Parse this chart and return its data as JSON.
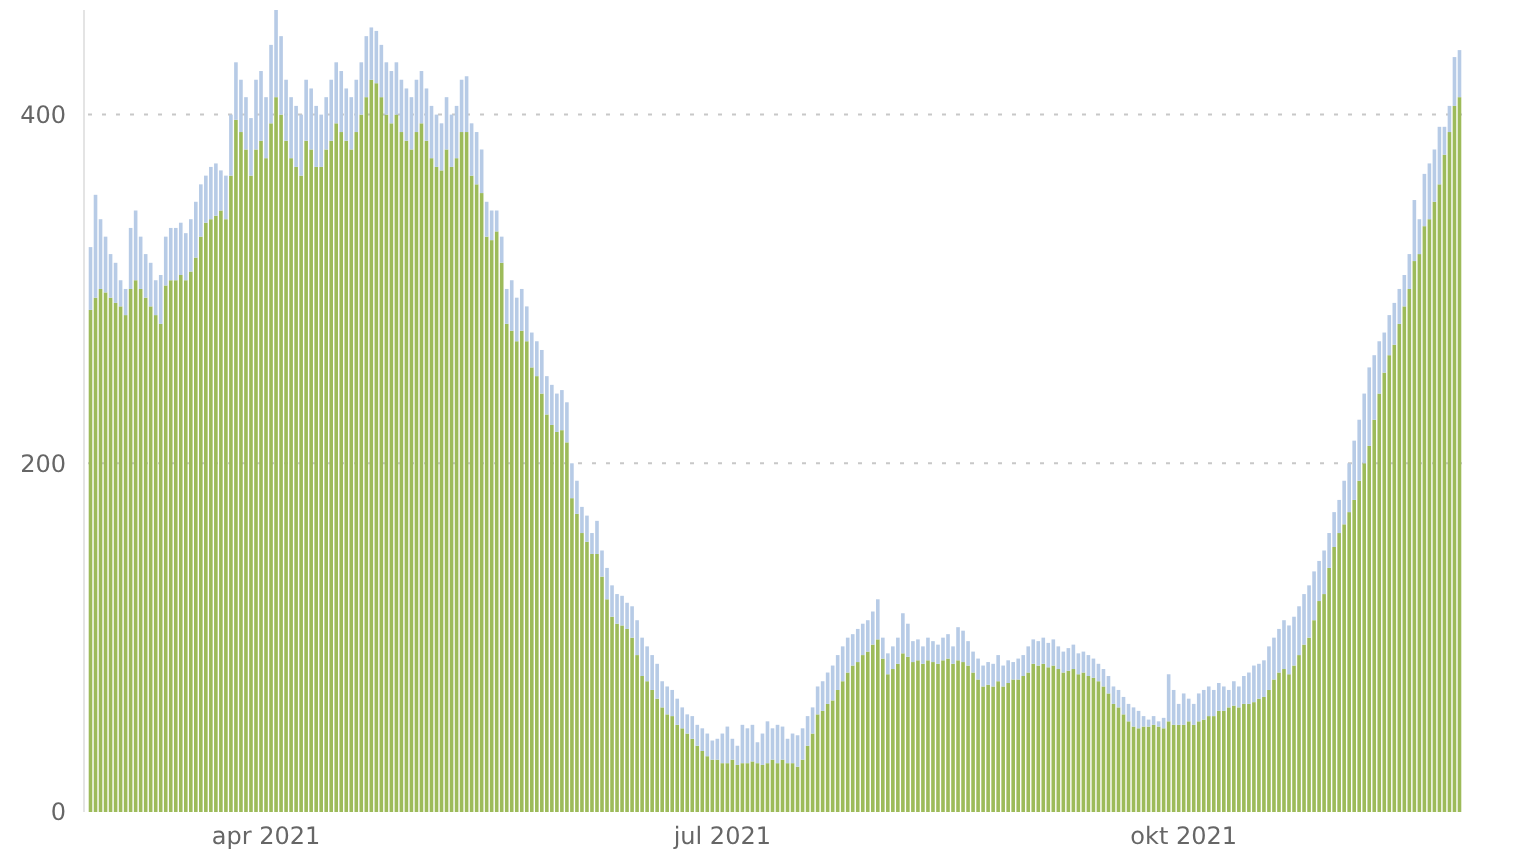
{
  "chart_data": {
    "type": "bar",
    "stacked": true,
    "grid": "y",
    "line_style": "dotted",
    "x": [
      "2021-02-25",
      "2021-02-26",
      "2021-02-27",
      "2021-02-28",
      "2021-03-01",
      "2021-03-02",
      "2021-03-03",
      "2021-03-04",
      "2021-03-05",
      "2021-03-06",
      "2021-03-07",
      "2021-03-08",
      "2021-03-09",
      "2021-03-10",
      "2021-03-11",
      "2021-03-12",
      "2021-03-13",
      "2021-03-14",
      "2021-03-15",
      "2021-03-16",
      "2021-03-17",
      "2021-03-18",
      "2021-03-19",
      "2021-03-20",
      "2021-03-21",
      "2021-03-22",
      "2021-03-23",
      "2021-03-24",
      "2021-03-25",
      "2021-03-26",
      "2021-03-27",
      "2021-03-28",
      "2021-03-29",
      "2021-03-30",
      "2021-03-31",
      "2021-04-01",
      "2021-04-02",
      "2021-04-03",
      "2021-04-04",
      "2021-04-05",
      "2021-04-06",
      "2021-04-07",
      "2021-04-08",
      "2021-04-09",
      "2021-04-10",
      "2021-04-11",
      "2021-04-12",
      "2021-04-13",
      "2021-04-14",
      "2021-04-15",
      "2021-04-16",
      "2021-04-17",
      "2021-04-18",
      "2021-04-19",
      "2021-04-20",
      "2021-04-21",
      "2021-04-22",
      "2021-04-23",
      "2021-04-24",
      "2021-04-25",
      "2021-04-26",
      "2021-04-27",
      "2021-04-28",
      "2021-04-29",
      "2021-04-30",
      "2021-05-01",
      "2021-05-02",
      "2021-05-03",
      "2021-05-04",
      "2021-05-05",
      "2021-05-06",
      "2021-05-07",
      "2021-05-08",
      "2021-05-09",
      "2021-05-10",
      "2021-05-11",
      "2021-05-12",
      "2021-05-13",
      "2021-05-14",
      "2021-05-15",
      "2021-05-16",
      "2021-05-17",
      "2021-05-18",
      "2021-05-19",
      "2021-05-20",
      "2021-05-21",
      "2021-05-22",
      "2021-05-23",
      "2021-05-24",
      "2021-05-25",
      "2021-05-26",
      "2021-05-27",
      "2021-05-28",
      "2021-05-29",
      "2021-05-30",
      "2021-05-31",
      "2021-06-01",
      "2021-06-02",
      "2021-06-03",
      "2021-06-04",
      "2021-06-05",
      "2021-06-06",
      "2021-06-07",
      "2021-06-08",
      "2021-06-09",
      "2021-06-10",
      "2021-06-11",
      "2021-06-12",
      "2021-06-13",
      "2021-06-14",
      "2021-06-15",
      "2021-06-16",
      "2021-06-17",
      "2021-06-18",
      "2021-06-19",
      "2021-06-20",
      "2021-06-21",
      "2021-06-22",
      "2021-06-23",
      "2021-06-24",
      "2021-06-25",
      "2021-06-26",
      "2021-06-27",
      "2021-06-28",
      "2021-06-29",
      "2021-06-30",
      "2021-07-01",
      "2021-07-02",
      "2021-07-03",
      "2021-07-04",
      "2021-07-05",
      "2021-07-06",
      "2021-07-07",
      "2021-07-08",
      "2021-07-09",
      "2021-07-10",
      "2021-07-11",
      "2021-07-12",
      "2021-07-13",
      "2021-07-14",
      "2021-07-15",
      "2021-07-16",
      "2021-07-17",
      "2021-07-18",
      "2021-07-19",
      "2021-07-20",
      "2021-07-21",
      "2021-07-22",
      "2021-07-23",
      "2021-07-24",
      "2021-07-25",
      "2021-07-26",
      "2021-07-27",
      "2021-07-28",
      "2021-07-29",
      "2021-07-30",
      "2021-07-31",
      "2021-08-01",
      "2021-08-02",
      "2021-08-03",
      "2021-08-04",
      "2021-08-05",
      "2021-08-06",
      "2021-08-07",
      "2021-08-08",
      "2021-08-09",
      "2021-08-10",
      "2021-08-11",
      "2021-08-12",
      "2021-08-13",
      "2021-08-14",
      "2021-08-15",
      "2021-08-16",
      "2021-08-17",
      "2021-08-18",
      "2021-08-19",
      "2021-08-20",
      "2021-08-21",
      "2021-08-22",
      "2021-08-23",
      "2021-08-24",
      "2021-08-25",
      "2021-08-26",
      "2021-08-27",
      "2021-08-28",
      "2021-08-29",
      "2021-08-30",
      "2021-08-31",
      "2021-09-01",
      "2021-09-02",
      "2021-09-03",
      "2021-09-04",
      "2021-09-05",
      "2021-09-06",
      "2021-09-07",
      "2021-09-08",
      "2021-09-09",
      "2021-09-10",
      "2021-09-11",
      "2021-09-12",
      "2021-09-13",
      "2021-09-14",
      "2021-09-15",
      "2021-09-16",
      "2021-09-17",
      "2021-09-18",
      "2021-09-19",
      "2021-09-20",
      "2021-09-21",
      "2021-09-22",
      "2021-09-23",
      "2021-09-24",
      "2021-09-25",
      "2021-09-26",
      "2021-09-27",
      "2021-09-28",
      "2021-09-29",
      "2021-09-30",
      "2021-10-01",
      "2021-10-02",
      "2021-10-03",
      "2021-10-04",
      "2021-10-05",
      "2021-10-06",
      "2021-10-07",
      "2021-10-08",
      "2021-10-09",
      "2021-10-10",
      "2021-10-11",
      "2021-10-12",
      "2021-10-13",
      "2021-10-14",
      "2021-10-15",
      "2021-10-16",
      "2021-10-17",
      "2021-10-18",
      "2021-10-19",
      "2021-10-20",
      "2021-10-21",
      "2021-10-22",
      "2021-10-23",
      "2021-10-24",
      "2021-10-25",
      "2021-10-26",
      "2021-10-27",
      "2021-10-28",
      "2021-10-29",
      "2021-10-30",
      "2021-10-31",
      "2021-11-01",
      "2021-11-02",
      "2021-11-03",
      "2021-11-04",
      "2021-11-05",
      "2021-11-06",
      "2021-11-07",
      "2021-11-08",
      "2021-11-09",
      "2021-11-10",
      "2021-11-11",
      "2021-11-12",
      "2021-11-13",
      "2021-11-14",
      "2021-11-15",
      "2021-11-16",
      "2021-11-17",
      "2021-11-18",
      "2021-11-19",
      "2021-11-20",
      "2021-11-21",
      "2021-11-22",
      "2021-11-23",
      "2021-11-24",
      "2021-11-25"
    ],
    "xlim": [
      "2021-02-24T12:00",
      "2021-11-25T12:00"
    ],
    "xticks": [
      {
        "value": "2021-04-01",
        "label": "apr 2021"
      },
      {
        "value": "2021-07-01",
        "label": "jul 2021"
      },
      {
        "value": "2021-10-01",
        "label": "okt 2021"
      }
    ],
    "ylim": [
      0,
      460
    ],
    "yticks": [
      0,
      200,
      400
    ],
    "series": [
      {
        "color": "#9dbb5a",
        "values": [
          288,
          295,
          300,
          298,
          295,
          292,
          290,
          285,
          300,
          305,
          300,
          295,
          290,
          285,
          280,
          302,
          305,
          305,
          308,
          305,
          310,
          318,
          330,
          338,
          340,
          342,
          345,
          340,
          365,
          397,
          390,
          380,
          365,
          380,
          385,
          375,
          395,
          410,
          400,
          385,
          375,
          370,
          365,
          385,
          380,
          370,
          370,
          380,
          385,
          395,
          390,
          385,
          380,
          390,
          400,
          410,
          420,
          418,
          410,
          400,
          395,
          400,
          390,
          385,
          380,
          390,
          395,
          385,
          375,
          370,
          368,
          380,
          370,
          375,
          390,
          390,
          365,
          360,
          355,
          330,
          328,
          333,
          315,
          280,
          276,
          270,
          276,
          270,
          255,
          250,
          240,
          228,
          222,
          218,
          219,
          212,
          180,
          171,
          160,
          155,
          148,
          148,
          135,
          122,
          112,
          108,
          107,
          105,
          100,
          90,
          78,
          75,
          70,
          65,
          60,
          56,
          55,
          50,
          48,
          45,
          42,
          38,
          35,
          32,
          30,
          30,
          28,
          28,
          30,
          27,
          28,
          28,
          29,
          28,
          27,
          28,
          30,
          28,
          30,
          28,
          28,
          26,
          30,
          38,
          45,
          56,
          58,
          62,
          64,
          70,
          75,
          80,
          84,
          86,
          90,
          92,
          96,
          99,
          88,
          79,
          82,
          85,
          91,
          89,
          86,
          87,
          85,
          87,
          86,
          85,
          87,
          88,
          85,
          87,
          86,
          84,
          80,
          76,
          72,
          73,
          72,
          75,
          72,
          74,
          76,
          76,
          78,
          80,
          85,
          84,
          85,
          83,
          84,
          82,
          80,
          81,
          82,
          79,
          80,
          78,
          77,
          75,
          72,
          68,
          62,
          60,
          56,
          52,
          49,
          48,
          49,
          49,
          50,
          49,
          48,
          52,
          50,
          50,
          50,
          52,
          50,
          52,
          53,
          55,
          55,
          58,
          58,
          60,
          61,
          60,
          62,
          62,
          63,
          65,
          66,
          70,
          76,
          80,
          82,
          79,
          84,
          90,
          96,
          100,
          110,
          121,
          125,
          140,
          152,
          160,
          165,
          172,
          179,
          190,
          200,
          210,
          225,
          240,
          252,
          262,
          268,
          280,
          290,
          300,
          316,
          320,
          336,
          340,
          350,
          360,
          377,
          390,
          405,
          410
        ]
      },
      {
        "color": "#b7cbe6",
        "values": [
          36,
          59,
          40,
          32,
          25,
          23,
          15,
          15,
          35,
          40,
          30,
          25,
          25,
          20,
          28,
          28,
          30,
          30,
          30,
          27,
          30,
          32,
          30,
          27,
          30,
          30,
          23,
          25,
          35,
          33,
          30,
          30,
          33,
          40,
          40,
          35,
          45,
          50,
          45,
          35,
          35,
          35,
          35,
          35,
          35,
          35,
          30,
          30,
          35,
          35,
          35,
          30,
          30,
          30,
          30,
          35,
          30,
          30,
          30,
          30,
          30,
          30,
          30,
          30,
          30,
          30,
          30,
          30,
          30,
          30,
          27,
          30,
          30,
          30,
          30,
          32,
          30,
          30,
          25,
          20,
          17,
          12,
          15,
          20,
          29,
          25,
          24,
          20,
          20,
          20,
          25,
          22,
          23,
          22,
          23,
          23,
          20,
          19,
          15,
          15,
          12,
          19,
          15,
          18,
          18,
          17,
          17,
          15,
          18,
          20,
          22,
          20,
          20,
          20,
          15,
          16,
          15,
          15,
          12,
          11,
          13,
          12,
          13,
          13,
          11,
          12,
          17,
          21,
          12,
          11,
          22,
          20,
          21,
          12,
          18,
          24,
          18,
          22,
          19,
          14,
          17,
          18,
          18,
          17,
          15,
          16,
          17,
          18,
          20,
          20,
          20,
          20,
          18,
          19,
          18,
          18,
          19,
          23,
          12,
          12,
          13,
          15,
          23,
          19,
          12,
          12,
          10,
          13,
          12,
          11,
          13,
          14,
          10,
          19,
          18,
          14,
          12,
          12,
          12,
          13,
          13,
          15,
          12,
          13,
          10,
          12,
          12,
          15,
          14,
          14,
          15,
          14,
          15,
          13,
          12,
          13,
          14,
          12,
          12,
          12,
          11,
          10,
          10,
          10,
          10,
          10,
          10,
          10,
          11,
          10,
          6,
          4,
          5,
          3,
          6,
          27,
          20,
          12,
          18,
          13,
          12,
          16,
          17,
          17,
          15,
          16,
          14,
          10,
          14,
          12,
          16,
          18,
          21,
          20,
          21,
          25,
          24,
          25,
          28,
          28,
          28,
          28,
          29,
          30,
          28,
          23,
          25,
          20,
          20,
          19,
          25,
          28,
          34,
          35,
          40,
          45,
          37,
          30,
          23,
          23,
          24,
          20,
          18,
          20,
          35,
          20,
          30,
          32,
          30,
          33,
          16,
          15,
          28,
          27
        ]
      }
    ]
  }
}
